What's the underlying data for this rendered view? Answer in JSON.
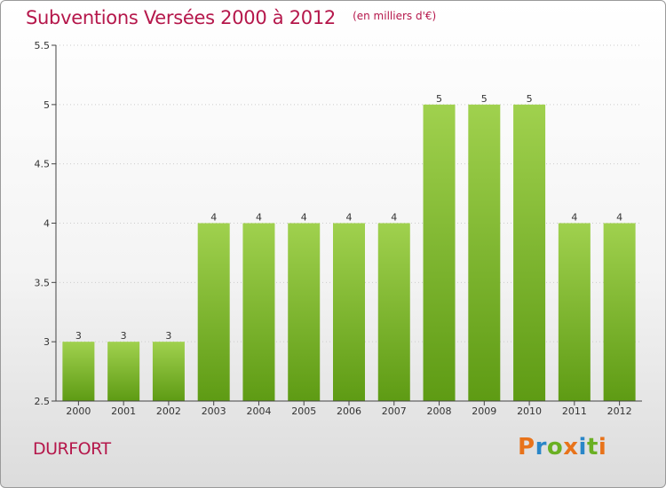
{
  "header": {
    "title": "Subventions Versées 2000 à 2012",
    "subtitle": "(en milliers d'€)"
  },
  "footer": {
    "commune": "DURFORT",
    "logo_text": "Proxiti",
    "logo_letters": [
      {
        "ch": "P",
        "color": "#e8731a"
      },
      {
        "ch": "r",
        "color": "#2a86c8"
      },
      {
        "ch": "o",
        "color": "#6ab023"
      },
      {
        "ch": "x",
        "color": "#e8731a"
      },
      {
        "ch": "i",
        "color": "#2a86c8"
      },
      {
        "ch": "t",
        "color": "#6ab023"
      },
      {
        "ch": "i",
        "color": "#e8731a"
      }
    ]
  },
  "colors": {
    "accent": "#b5174b",
    "bar_top": "#a0d14e",
    "bar_bottom": "#5e9b14",
    "grid": "#cccccc",
    "axis": "#444444"
  },
  "chart_data": {
    "type": "bar",
    "title": "Subventions Versées 2000 à 2012",
    "subtitle": "(en milliers d'€)",
    "xlabel": "",
    "ylabel": "",
    "categories": [
      "2000",
      "2001",
      "2002",
      "2003",
      "2004",
      "2005",
      "2006",
      "2007",
      "2008",
      "2009",
      "2010",
      "2011",
      "2012"
    ],
    "values": [
      3,
      3,
      3,
      4,
      4,
      4,
      4,
      4,
      5,
      5,
      5,
      4,
      4
    ],
    "data_labels": [
      "3",
      "3",
      "3",
      "4",
      "4",
      "4",
      "4",
      "4",
      "5",
      "5",
      "5",
      "4",
      "4"
    ],
    "ylim": [
      2.5,
      5.5
    ],
    "yticks": [
      2.5,
      3,
      3.5,
      4,
      4.5,
      5,
      5.5
    ],
    "ytick_labels": [
      "2.5",
      "3",
      "3.5",
      "4",
      "4.5",
      "5",
      "5.5"
    ],
    "grid": true
  }
}
